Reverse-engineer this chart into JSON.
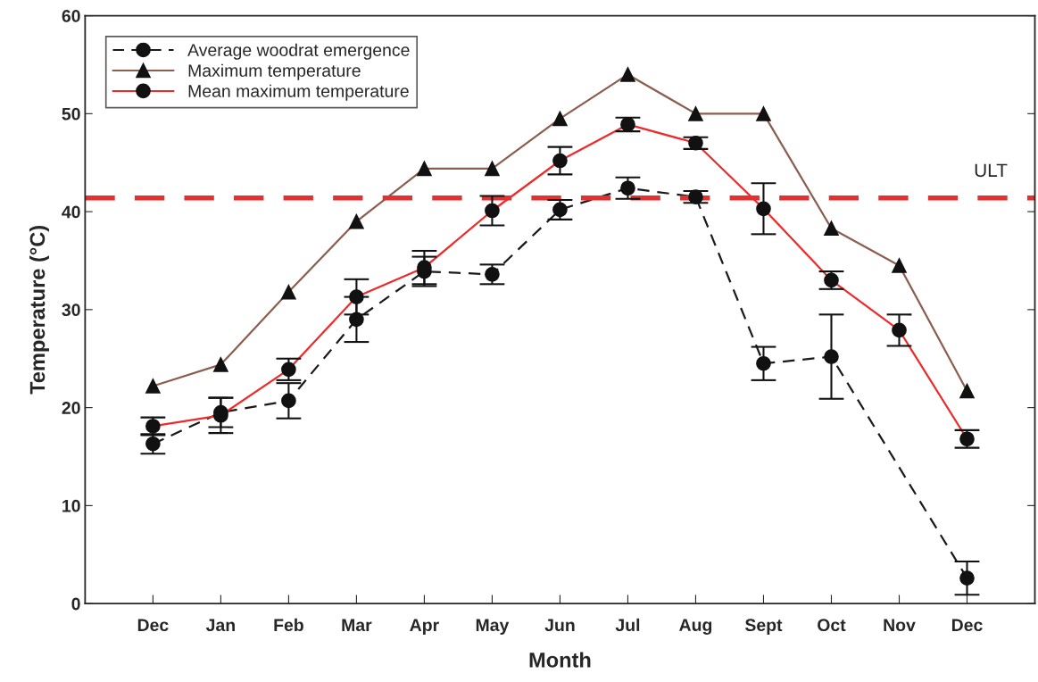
{
  "chart_data": {
    "type": "line",
    "xlabel": "Month",
    "ylabel": "Temperature (°C)",
    "categories": [
      "Dec",
      "Jan",
      "Feb",
      "Mar",
      "Apr",
      "May",
      "Jun",
      "Jul",
      "Aug",
      "Sept",
      "Oct",
      "Nov",
      "Dec"
    ],
    "series": [
      {
        "name": "Average woodrat emergence",
        "color": "#1a1a1a",
        "marker": "circle",
        "line_style": "dashed",
        "values": [
          16.3,
          19.5,
          20.7,
          29.0,
          33.9,
          33.6,
          40.2,
          42.4,
          41.5,
          24.5,
          25.2,
          null,
          2.6
        ],
        "errors": [
          1.0,
          1.5,
          1.8,
          2.3,
          1.5,
          1.0,
          1.0,
          1.1,
          0.6,
          1.7,
          4.3,
          null,
          1.7
        ]
      },
      {
        "name": "Maximum temperature",
        "color": "#8b5e50",
        "marker": "triangle",
        "line_style": "solid",
        "values": [
          22.2,
          24.4,
          31.8,
          39.0,
          44.4,
          44.4,
          49.5,
          54.0,
          50.0,
          50.0,
          38.3,
          34.5,
          21.7
        ]
      },
      {
        "name": "Mean maximum temperature",
        "color": "#ee2a2a",
        "marker": "circle",
        "line_style": "solid",
        "values": [
          18.1,
          19.2,
          23.9,
          31.3,
          34.3,
          40.1,
          45.2,
          48.9,
          47.0,
          40.3,
          33.0,
          27.9,
          16.8
        ],
        "errors": [
          0.9,
          1.8,
          1.1,
          1.8,
          1.7,
          1.5,
          1.4,
          0.7,
          0.6,
          2.6,
          0.9,
          1.6,
          0.9
        ]
      }
    ],
    "ylim": [
      0,
      60
    ],
    "yticks": [
      0,
      10,
      20,
      30,
      40,
      50,
      60
    ],
    "ref_lines": [
      {
        "axis": "y",
        "value": 41.4,
        "label": "ULT",
        "color": "#e53030",
        "line_style": "dashed"
      }
    ],
    "legend": "top left",
    "grid": false
  }
}
